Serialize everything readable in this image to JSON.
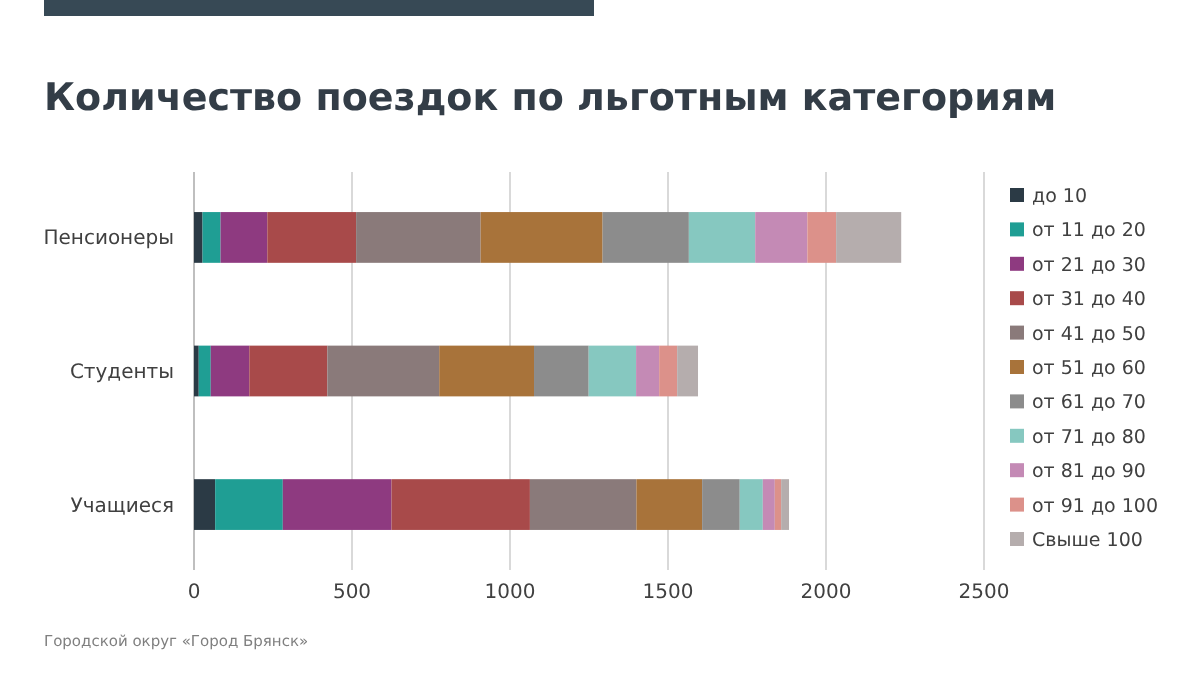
{
  "chart_data": {
    "type": "bar",
    "orientation": "horizontal",
    "stacked": true,
    "title": "Количество поездок по льготным категориям",
    "annotations": [
      "Городской округ «Город Брянск»"
    ],
    "categories": [
      "Пенсионеры",
      "Студенты",
      "Учащиеся"
    ],
    "series": [
      {
        "name": "до 10",
        "color": "#2b3a45",
        "values": [
          27,
          15,
          67
        ]
      },
      {
        "name": "от 11 до 20",
        "color": "#1f9e94",
        "values": [
          57,
          38,
          214
        ]
      },
      {
        "name": "от 21 до 30",
        "color": "#8e3a80",
        "values": [
          148,
          122,
          344
        ]
      },
      {
        "name": "от 31 до 40",
        "color": "#a84a4a",
        "values": [
          281,
          247,
          438
        ]
      },
      {
        "name": "от 41 до 50",
        "color": "#8a7a7a",
        "values": [
          394,
          354,
          337
        ]
      },
      {
        "name": "от 51 до 60",
        "color": "#a8733a",
        "values": [
          386,
          300,
          208
        ]
      },
      {
        "name": "от 61 до 70",
        "color": "#8c8c8c",
        "values": [
          273,
          173,
          119
        ]
      },
      {
        "name": "от 71 до 80",
        "color": "#86c8c0",
        "values": [
          210,
          150,
          73
        ]
      },
      {
        "name": "от 81 до 90",
        "color": "#c48ab5",
        "values": [
          165,
          73,
          38
        ]
      },
      {
        "name": "от 91 до 100",
        "color": "#dc918a",
        "values": [
          91,
          57,
          20
        ]
      },
      {
        "name": "Свыше 100",
        "color": "#b5adad",
        "values": [
          206,
          66,
          25
        ]
      }
    ],
    "xlim": [
      0,
      2500
    ],
    "xticks": [
      0,
      500,
      1000,
      1500,
      2000,
      2500
    ],
    "grid": "x",
    "legend": "right"
  }
}
